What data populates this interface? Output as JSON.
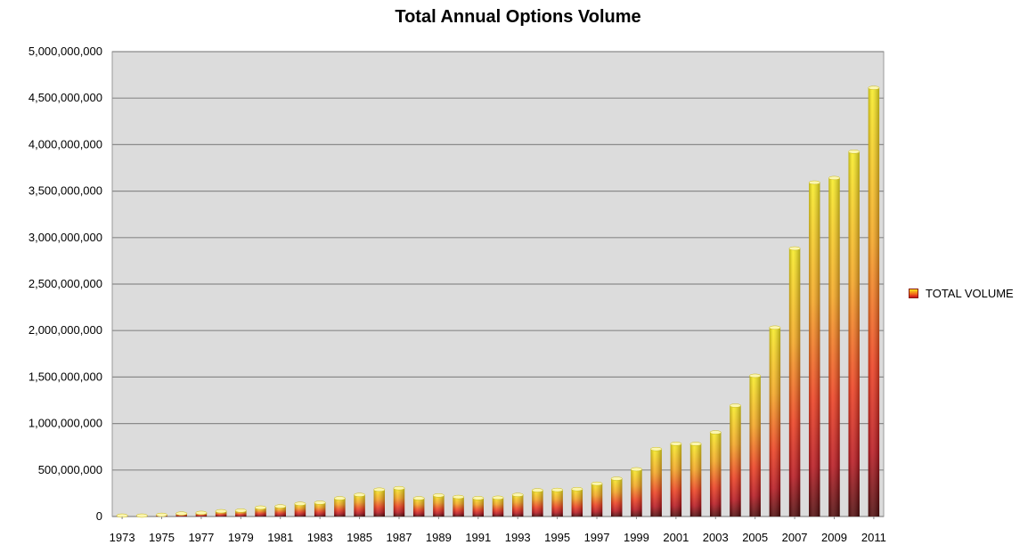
{
  "chart_data": {
    "type": "bar",
    "title": "Total Annual Options Volume",
    "xlabel": "",
    "ylabel": "",
    "ylim": [
      0,
      5000000000
    ],
    "yticks": [
      0,
      500000000,
      1000000000,
      1500000000,
      2000000000,
      2500000000,
      3000000000,
      3500000000,
      4000000000,
      4500000000,
      5000000000
    ],
    "ytick_labels": [
      "0",
      "500,000,000",
      "1,000,000,000",
      "1,500,000,000",
      "2,000,000,000",
      "2,500,000,000",
      "3,000,000,000",
      "3,500,000,000",
      "4,000,000,000",
      "4,500,000,000",
      "5,000,000,000"
    ],
    "categories": [
      "1973",
      "1974",
      "1975",
      "1976",
      "1977",
      "1978",
      "1979",
      "1980",
      "1981",
      "1982",
      "1983",
      "1984",
      "1985",
      "1986",
      "1987",
      "1988",
      "1989",
      "1990",
      "1991",
      "1992",
      "1993",
      "1994",
      "1995",
      "1996",
      "1997",
      "1998",
      "1999",
      "2000",
      "2001",
      "2002",
      "2003",
      "2004",
      "2005",
      "2006",
      "2007",
      "2008",
      "2009",
      "2010",
      "2011"
    ],
    "xtick_labels": [
      "1973",
      "1975",
      "1977",
      "1979",
      "1981",
      "1983",
      "1985",
      "1987",
      "1989",
      "1991",
      "1993",
      "1995",
      "1997",
      "1999",
      "2001",
      "2003",
      "2005",
      "2007",
      "2009",
      "2011"
    ],
    "series": [
      {
        "name": "TOTAL VOLUME",
        "values": [
          1000000,
          6000000,
          18000000,
          32000000,
          39000000,
          57000000,
          64000000,
          96000000,
          109000000,
          137000000,
          149000000,
          196000000,
          233000000,
          289000000,
          305000000,
          196000000,
          227000000,
          210000000,
          198000000,
          202000000,
          233000000,
          282000000,
          286000000,
          295000000,
          353000000,
          407000000,
          508000000,
          726000000,
          782000000,
          781000000,
          905000000,
          1193000000,
          1514000000,
          2032000000,
          2883000000,
          3592000000,
          3641000000,
          3924000000,
          4611000000
        ]
      }
    ],
    "grid": true,
    "legend_position": "right",
    "colors": {
      "bar_top": "#f7e51a",
      "bar_mid": "#f2641a",
      "bar_low": "#e8221a",
      "bar_base": "#5a0a08",
      "plot_bg": "#dcdcdc",
      "grid": "#8a8a8a"
    }
  }
}
